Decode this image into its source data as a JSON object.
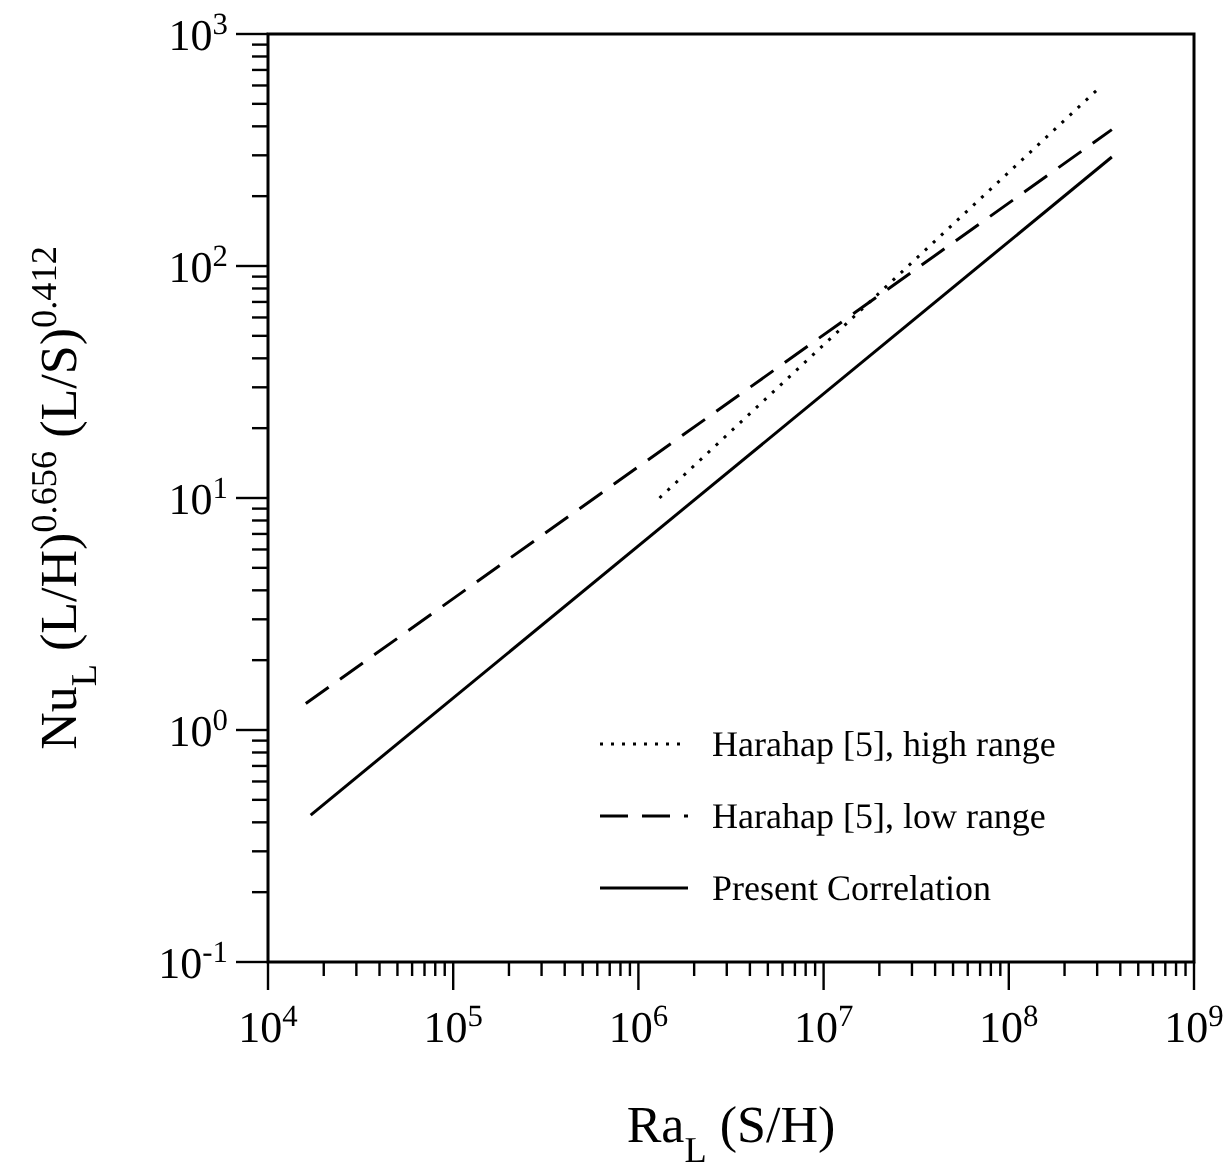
{
  "chart_data": {
    "type": "line",
    "xlabel": "Ra$_{L}$ (S/H)",
    "ylabel": "Nu$_{L}$ (L/H)$^{0.656}$ (L/S)$^{0.412}$",
    "log": "xy",
    "legend": "bottom right",
    "grid": false,
    "xlim": [
      10000,
      1000000000
    ],
    "ylim": [
      0.1,
      1000
    ],
    "xticks": [
      {
        "value": 10000,
        "label": "10$^{4}$"
      },
      {
        "value": 20000,
        "label": null
      },
      {
        "value": 30000,
        "label": null
      },
      {
        "value": 40000,
        "label": null
      },
      {
        "value": 50000,
        "label": null
      },
      {
        "value": 60000,
        "label": null
      },
      {
        "value": 70000,
        "label": null
      },
      {
        "value": 80000,
        "label": null
      },
      {
        "value": 90000,
        "label": null
      },
      {
        "value": 100000,
        "label": "10$^{5}$"
      },
      {
        "value": 200000,
        "label": null
      },
      {
        "value": 300000,
        "label": null
      },
      {
        "value": 400000,
        "label": null
      },
      {
        "value": 500000,
        "label": null
      },
      {
        "value": 600000,
        "label": null
      },
      {
        "value": 700000,
        "label": null
      },
      {
        "value": 800000,
        "label": null
      },
      {
        "value": 900000,
        "label": null
      },
      {
        "value": 1000000,
        "label": "10$^{6}$"
      },
      {
        "value": 2000000,
        "label": null
      },
      {
        "value": 3000000,
        "label": null
      },
      {
        "value": 4000000,
        "label": null
      },
      {
        "value": 5000000,
        "label": null
      },
      {
        "value": 6000000,
        "label": null
      },
      {
        "value": 7000000,
        "label": null
      },
      {
        "value": 8000000,
        "label": null
      },
      {
        "value": 9000000,
        "label": null
      },
      {
        "value": 10000000,
        "label": "10$^{7}$"
      },
      {
        "value": 20000000,
        "label": null
      },
      {
        "value": 30000000,
        "label": null
      },
      {
        "value": 40000000,
        "label": null
      },
      {
        "value": 50000000,
        "label": null
      },
      {
        "value": 60000000,
        "label": null
      },
      {
        "value": 70000000,
        "label": null
      },
      {
        "value": 80000000,
        "label": null
      },
      {
        "value": 90000000,
        "label": null
      },
      {
        "value": 100000000,
        "label": "10$^{8}$"
      },
      {
        "value": 200000000,
        "label": null
      },
      {
        "value": 300000000,
        "label": null
      },
      {
        "value": 400000000,
        "label": null
      },
      {
        "value": 500000000,
        "label": null
      },
      {
        "value": 600000000,
        "label": null
      },
      {
        "value": 700000000,
        "label": null
      },
      {
        "value": 800000000,
        "label": null
      },
      {
        "value": 900000000,
        "label": null
      },
      {
        "value": 1000000000,
        "label": "10$^{9}$"
      }
    ],
    "yticks": [
      {
        "value": 0.1,
        "label": "10$^{-1}$"
      },
      {
        "value": 0.2,
        "label": null
      },
      {
        "value": 0.3,
        "label": null
      },
      {
        "value": 0.4,
        "label": null
      },
      {
        "value": 0.5,
        "label": null
      },
      {
        "value": 0.6,
        "label": null
      },
      {
        "value": 0.7,
        "label": null
      },
      {
        "value": 0.8,
        "label": null
      },
      {
        "value": 0.9,
        "label": null
      },
      {
        "value": 1,
        "label": "10$^{0}$"
      },
      {
        "value": 2,
        "label": null
      },
      {
        "value": 3,
        "label": null
      },
      {
        "value": 4,
        "label": null
      },
      {
        "value": 5,
        "label": null
      },
      {
        "value": 6,
        "label": null
      },
      {
        "value": 7,
        "label": null
      },
      {
        "value": 8,
        "label": null
      },
      {
        "value": 9,
        "label": null
      },
      {
        "value": 10,
        "label": "10$^{1}$"
      },
      {
        "value": 20,
        "label": null
      },
      {
        "value": 30,
        "label": null
      },
      {
        "value": 40,
        "label": null
      },
      {
        "value": 50,
        "label": null
      },
      {
        "value": 60,
        "label": null
      },
      {
        "value": 70,
        "label": null
      },
      {
        "value": 80,
        "label": null
      },
      {
        "value": 90,
        "label": null
      },
      {
        "value": 100,
        "label": "10$^{2}$"
      },
      {
        "value": 200,
        "label": null
      },
      {
        "value": 300,
        "label": null
      },
      {
        "value": 400,
        "label": null
      },
      {
        "value": 500,
        "label": null
      },
      {
        "value": 600,
        "label": null
      },
      {
        "value": 700,
        "label": null
      },
      {
        "value": 800,
        "label": null
      },
      {
        "value": 900,
        "label": null
      },
      {
        "value": 1000,
        "label": "10$^{3}$"
      }
    ],
    "series": [
      {
        "name": "Harahap [5], high range",
        "color": "#000000",
        "line_style": "dotted",
        "x": [
          1300000,
          300000000
        ],
        "values": [
          10,
          575
        ]
      },
      {
        "name": "Harahap [5], low range",
        "color": "#000000",
        "line_style": "dashed",
        "x": [
          16000,
          360000000
        ],
        "values": [
          1.3,
          387
        ]
      },
      {
        "name": "Present Correlation",
        "color": "#000000",
        "line_style": "solid",
        "x": [
          17000,
          360000000
        ],
        "values": [
          0.43,
          295
        ]
      }
    ]
  }
}
